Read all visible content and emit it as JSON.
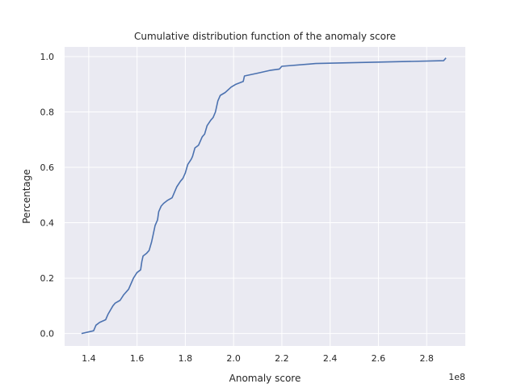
{
  "chart_data": {
    "type": "line",
    "title": "Cumulative distribution function of the anomaly score",
    "xlabel": "Anomaly score",
    "ylabel": "Percentage",
    "x_offset_label": "1e8",
    "xlim": [
      1.3,
      2.96
    ],
    "ylim": [
      -0.045,
      1.035
    ],
    "xticks": [
      1.4,
      1.6,
      1.8,
      2.0,
      2.2,
      2.4,
      2.6,
      2.8
    ],
    "xtick_labels": [
      "1.4",
      "1.6",
      "1.8",
      "2.0",
      "2.2",
      "2.4",
      "2.6",
      "2.8"
    ],
    "yticks": [
      0.0,
      0.2,
      0.4,
      0.6,
      0.8,
      1.0
    ],
    "ytick_labels": [
      "0.0",
      "0.2",
      "0.4",
      "0.6",
      "0.8",
      "1.0"
    ],
    "grid": true,
    "background_color": "#eaeaf2",
    "grid_color": "#ffffff",
    "line_color": "#4c72b0",
    "series": [
      {
        "x": [
          1.37,
          1.42,
          1.43,
          1.445,
          1.47,
          1.48,
          1.5,
          1.51,
          1.53,
          1.545,
          1.565,
          1.58,
          1.585,
          1.6,
          1.615,
          1.62,
          1.625,
          1.64,
          1.65,
          1.66,
          1.665,
          1.675,
          1.685,
          1.69,
          1.7,
          1.71,
          1.725,
          1.745,
          1.75,
          1.76,
          1.765,
          1.78,
          1.79,
          1.8,
          1.81,
          1.825,
          1.83,
          1.84,
          1.855,
          1.86,
          1.87,
          1.88,
          1.89,
          1.905,
          1.915,
          1.925,
          1.935,
          1.945,
          1.965,
          1.99,
          2.01,
          2.04,
          2.045,
          2.1,
          2.15,
          2.19,
          2.2,
          2.34,
          2.87,
          2.88
        ],
        "y": [
          0.0,
          0.01,
          0.03,
          0.04,
          0.05,
          0.07,
          0.1,
          0.11,
          0.12,
          0.14,
          0.16,
          0.19,
          0.2,
          0.22,
          0.23,
          0.26,
          0.28,
          0.29,
          0.3,
          0.33,
          0.35,
          0.39,
          0.41,
          0.44,
          0.46,
          0.47,
          0.48,
          0.49,
          0.5,
          0.52,
          0.53,
          0.55,
          0.56,
          0.58,
          0.61,
          0.63,
          0.64,
          0.67,
          0.68,
          0.69,
          0.71,
          0.72,
          0.75,
          0.77,
          0.78,
          0.8,
          0.84,
          0.86,
          0.87,
          0.89,
          0.9,
          0.91,
          0.93,
          0.94,
          0.95,
          0.955,
          0.965,
          0.975,
          0.985,
          0.995
        ]
      }
    ]
  }
}
